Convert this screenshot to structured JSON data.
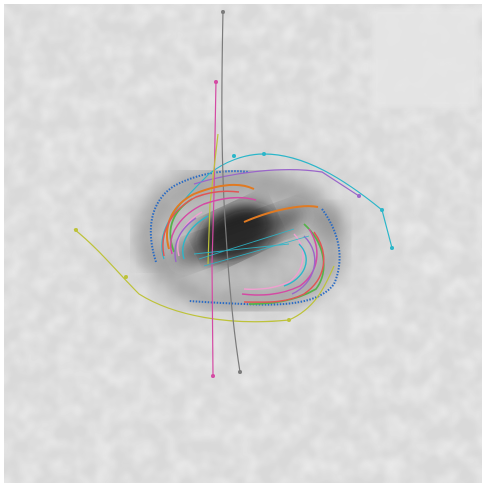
{
  "figure": {
    "background_color": "#d9d9d9",
    "core_color": "#151515",
    "tracings": [
      {
        "color": "#2b6cc4"
      },
      {
        "color": "#2bb6c9"
      },
      {
        "color": "#9a66c9"
      },
      {
        "color": "#d44aa3"
      },
      {
        "color": "#e07a22"
      },
      {
        "color": "#bdc23a"
      },
      {
        "color": "#55b24a"
      },
      {
        "color": "#e05555"
      },
      {
        "color": "#7b7b7b"
      },
      {
        "color": "#f0a0d0"
      }
    ]
  }
}
